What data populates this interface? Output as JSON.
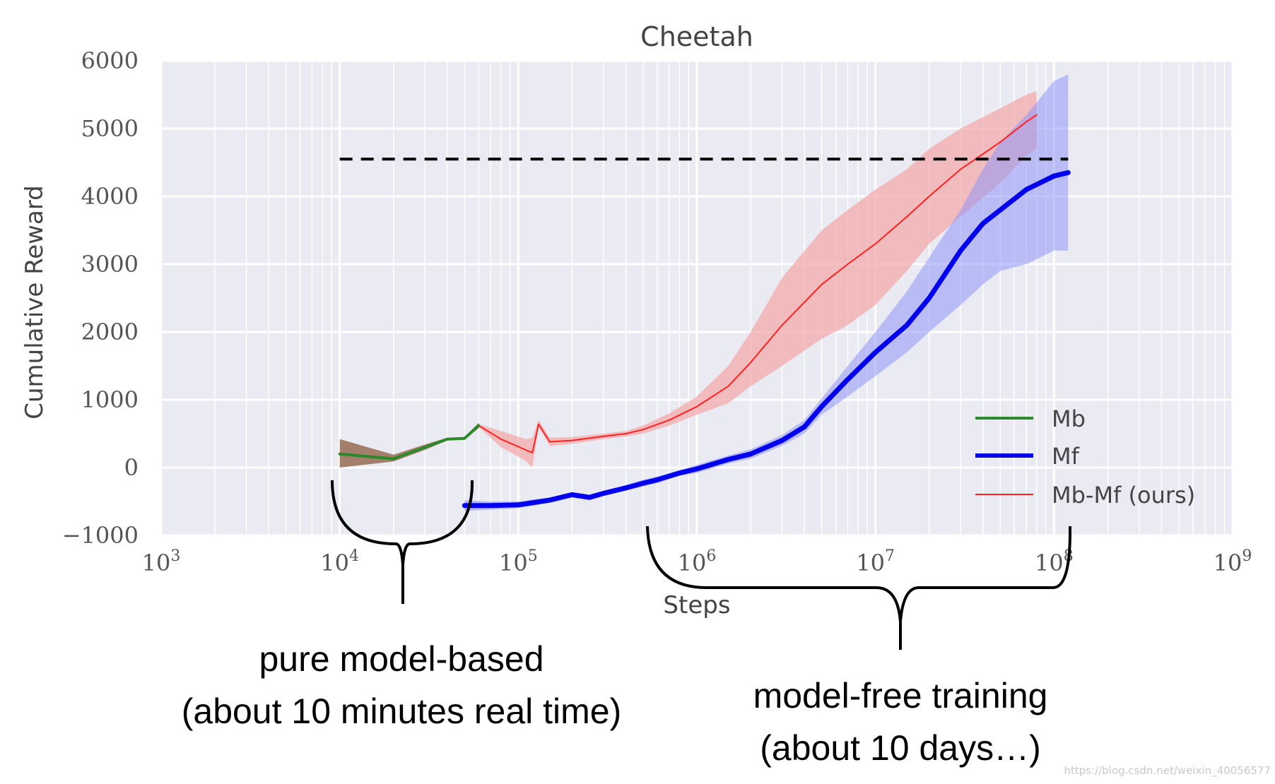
{
  "chart_data": {
    "type": "line",
    "title": "Cheetah",
    "xlabel": "Steps",
    "ylabel": "Cumulative Reward",
    "xscale": "log",
    "xlim": [
      1000,
      1000000000
    ],
    "ylim": [
      -1000,
      6000
    ],
    "grid": true,
    "x_ticks": [
      {
        "value": 1000,
        "base": "10",
        "exp": "3"
      },
      {
        "value": 10000,
        "base": "10",
        "exp": "4"
      },
      {
        "value": 100000,
        "base": "10",
        "exp": "5"
      },
      {
        "value": 1000000,
        "base": "10",
        "exp": "6"
      },
      {
        "value": 10000000,
        "base": "10",
        "exp": "7"
      },
      {
        "value": 100000000,
        "base": "10",
        "exp": "8"
      },
      {
        "value": 1000000000,
        "base": "10",
        "exp": "9"
      }
    ],
    "y_ticks": [
      {
        "value": -1000,
        "label": "−1000"
      },
      {
        "value": 0,
        "label": "0"
      },
      {
        "value": 1000,
        "label": "1000"
      },
      {
        "value": 2000,
        "label": "2000"
      },
      {
        "value": 3000,
        "label": "3000"
      },
      {
        "value": 4000,
        "label": "4000"
      },
      {
        "value": 5000,
        "label": "5000"
      },
      {
        "value": 6000,
        "label": "6000"
      }
    ],
    "series": [
      {
        "name": "Mb",
        "color": "#2a8a2a",
        "band_color": "#8b5a3c",
        "x": [
          10000,
          20000,
          30000,
          40000,
          50000,
          60000
        ],
        "y": [
          200,
          130,
          300,
          420,
          430,
          620
        ],
        "lower": [
          0,
          90,
          260,
          400,
          410,
          580
        ],
        "upper": [
          420,
          190,
          340,
          440,
          450,
          660
        ]
      },
      {
        "name": "Mf",
        "color": "#0000ee",
        "band_color": "#8f96f5",
        "x": [
          50000,
          70000,
          100000,
          150000,
          200000,
          250000,
          300000,
          400000,
          500000,
          600000,
          800000,
          1000000,
          1500000,
          2000000,
          3000000,
          4000000,
          5000000,
          7000000,
          10000000,
          15000000,
          20000000,
          30000000,
          40000000,
          50000000,
          70000000,
          100000000,
          120000000
        ],
        "y": [
          -560,
          -560,
          -550,
          -480,
          -400,
          -440,
          -380,
          -300,
          -230,
          -180,
          -80,
          -20,
          120,
          200,
          400,
          600,
          900,
          1300,
          1700,
          2100,
          2500,
          3200,
          3600,
          3800,
          4100,
          4300,
          4350
        ],
        "lower": [
          -640,
          -620,
          -600,
          -520,
          -440,
          -480,
          -420,
          -340,
          -280,
          -230,
          -120,
          -80,
          60,
          130,
          320,
          500,
          780,
          1050,
          1350,
          1700,
          2000,
          2400,
          2700,
          2900,
          3000,
          3200,
          3200
        ],
        "upper": [
          -480,
          -500,
          -500,
          -440,
          -360,
          -400,
          -340,
          -260,
          -180,
          -130,
          -40,
          40,
          180,
          270,
          480,
          700,
          1020,
          1500,
          2000,
          2600,
          3100,
          3800,
          4400,
          4800,
          5200,
          5700,
          5800
        ]
      },
      {
        "name": "Mb-Mf (ours)",
        "color": "#ff2020",
        "band_color": "#f3a5a5",
        "x": [
          60000,
          80000,
          110000,
          120000,
          130000,
          150000,
          200000,
          300000,
          400000,
          500000,
          700000,
          1000000,
          1500000,
          2000000,
          3000000,
          5000000,
          7000000,
          10000000,
          15000000,
          20000000,
          30000000,
          50000000,
          70000000,
          80000000
        ],
        "y": [
          620,
          420,
          260,
          220,
          640,
          380,
          400,
          460,
          500,
          560,
          700,
          900,
          1200,
          1550,
          2100,
          2700,
          3000,
          3300,
          3700,
          4000,
          4400,
          4800,
          5100,
          5200
        ],
        "lower": [
          600,
          300,
          100,
          0,
          600,
          320,
          350,
          420,
          460,
          500,
          620,
          780,
          950,
          1200,
          1500,
          1900,
          2100,
          2400,
          2900,
          3300,
          3700,
          4200,
          4600,
          4700
        ],
        "upper": [
          640,
          540,
          420,
          440,
          700,
          440,
          450,
          500,
          540,
          620,
          800,
          1050,
          1500,
          2000,
          2800,
          3500,
          3800,
          4100,
          4400,
          4700,
          5000,
          5300,
          5500,
          5550
        ]
      }
    ],
    "reference_line": {
      "y": 4550,
      "x_start": 10000,
      "x_end": 120000000,
      "style": "dashed",
      "color": "#000000"
    },
    "legend": {
      "placement": "lower-right",
      "entries": [
        "Mb",
        "Mf",
        "Mb-Mf (ours)"
      ]
    },
    "annotations": [
      {
        "text_lines": [
          "pure model-based",
          "(about 10 minutes real time)"
        ],
        "bracket_x": [
          10000,
          60000
        ]
      },
      {
        "text_lines": [
          "model-free training",
          "(about 10 days…)"
        ],
        "bracket_x": [
          500000,
          120000000
        ]
      }
    ],
    "watermark": "https://blog.csdn.net/weixin_40056577"
  }
}
